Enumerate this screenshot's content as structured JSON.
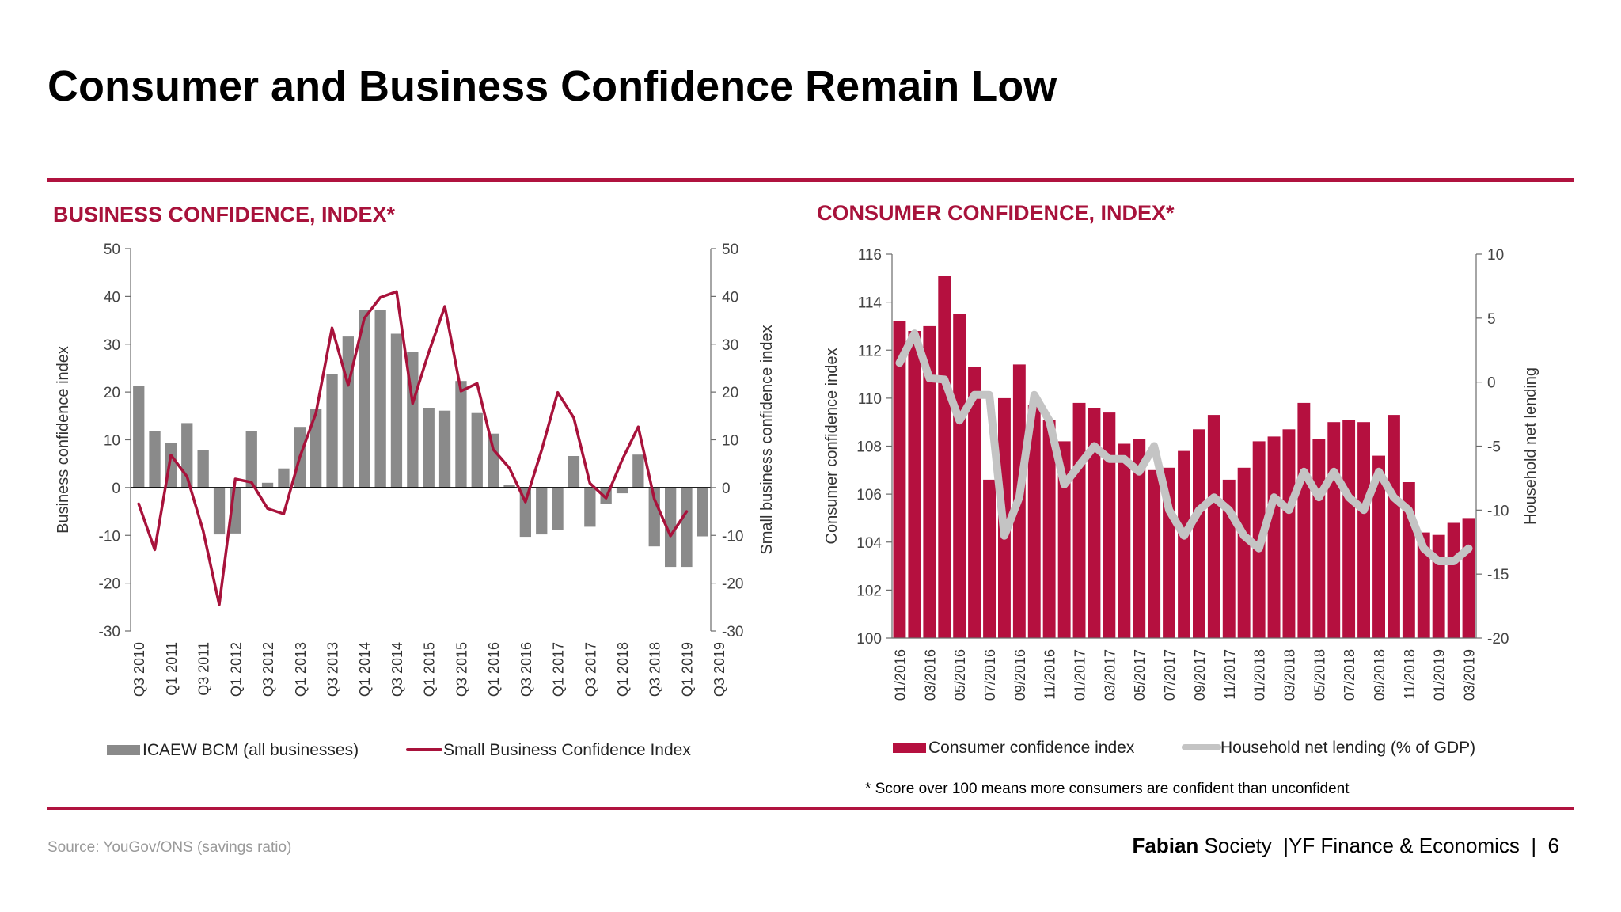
{
  "slide": {
    "title": "Consumer and Business Confidence Remain Low",
    "source": "Source: YouGov/ONS (savings ratio)",
    "footer_brand": "Fabian",
    "footer_rest": " Society  |YF Finance & Economics  |  6",
    "note": "* Score over 100 means more consumers are confident than unconfident"
  },
  "colors": {
    "accent": "#b0133f",
    "crimson": "#b5103f",
    "grey": "#8a8a8a",
    "lightgrey": "#c4c4c4"
  },
  "chart_data": [
    {
      "type": "bar",
      "title": "BUSINESS CONFIDENCE, INDEX*",
      "ylabel": "Business confidence index",
      "y2label": "Small business confidence index",
      "ylim": [
        -30,
        50
      ],
      "y2lim": [
        -30,
        50
      ],
      "yticks": [
        "50",
        "40",
        "30",
        "20",
        "10",
        "0",
        "-10",
        "-20",
        "-30"
      ],
      "y2ticks": [
        "50",
        "40",
        "30",
        "20",
        "10",
        "0",
        "-10",
        "-20",
        "-30"
      ],
      "x_tick_labels": [
        "Q3 2010",
        "Q1 2011",
        "Q3 2011",
        "Q1 2012",
        "Q3 2012",
        "Q1 2013",
        "Q3 2013",
        "Q1 2014",
        "Q3 2014",
        "Q1 2015",
        "Q3 2015",
        "Q1 2016",
        "Q3 2016",
        "Q1 2017",
        "Q3 2017",
        "Q1 2018",
        "Q3 2018",
        "Q1 2019",
        "Q3 2019"
      ],
      "legend_position": "bottom",
      "series": [
        {
          "name": "ICAEW BCM (all businesses)",
          "kind": "bar",
          "color": "#8a8a8a",
          "values": [
            21.2,
            11.8,
            9.3,
            13.5,
            7.9,
            -9.8,
            -9.6,
            11.9,
            1.0,
            4.0,
            12.7,
            16.5,
            23.8,
            31.6,
            37.1,
            37.2,
            32.2,
            28.4,
            16.7,
            16.1,
            22.3,
            15.6,
            11.3,
            0.6,
            -10.3,
            -9.8,
            -8.8,
            6.6,
            -8.2,
            -3.4,
            -1.2,
            6.9,
            -12.3,
            -16.6,
            -16.6,
            -10.2
          ]
        },
        {
          "name": "Small Business Confidence Index",
          "kind": "line",
          "color": "#a8123b",
          "values": [
            -3.4,
            -13.0,
            6.8,
            2.3,
            -9.0,
            -24.5,
            1.8,
            1.1,
            -4.4,
            -5.5,
            6.4,
            15.6,
            33.4,
            21.4,
            35.4,
            39.8,
            41.0,
            17.6,
            28.3,
            37.9,
            20.2,
            21.8,
            8.0,
            4.1,
            -3.0,
            7.8,
            19.9,
            14.6,
            0.9,
            -2.2,
            5.8,
            12.7,
            -2.4,
            -10.1,
            -5.0
          ]
        }
      ]
    },
    {
      "type": "bar",
      "title": "CONSUMER CONFIDENCE, INDEX*",
      "ylabel": "Consumer confidence index",
      "y2label": "Household net lending",
      "ylim": [
        100,
        116
      ],
      "y2lim": [
        -20,
        10
      ],
      "yticks": [
        "116",
        "114",
        "112",
        "110",
        "108",
        "106",
        "104",
        "102",
        "100"
      ],
      "y2ticks": [
        "10",
        "5",
        "0",
        "-5",
        "-10",
        "-15",
        "-20"
      ],
      "x_tick_labels": [
        "01/2016",
        "03/2016",
        "05/2016",
        "07/2016",
        "09/2016",
        "11/2016",
        "01/2017",
        "03/2017",
        "05/2017",
        "07/2017",
        "09/2017",
        "11/2017",
        "01/2018",
        "03/2018",
        "05/2018",
        "07/2018",
        "09/2018",
        "11/2018",
        "01/2019",
        "03/2019"
      ],
      "legend_position": "bottom",
      "series": [
        {
          "name": "Consumer confidence index",
          "kind": "bar",
          "color": "#b5103f",
          "values": [
            113.2,
            112.8,
            113.0,
            115.1,
            113.5,
            111.3,
            106.6,
            110.0,
            111.4,
            109.7,
            109.1,
            108.2,
            109.8,
            109.6,
            109.4,
            108.1,
            108.3,
            107.0,
            107.1,
            107.8,
            108.7,
            109.3,
            106.6,
            107.1,
            108.2,
            108.4,
            108.7,
            109.8,
            108.3,
            109.0,
            109.1,
            109.0,
            107.6,
            109.3,
            106.5,
            104.4,
            104.3,
            104.8,
            105.0
          ]
        },
        {
          "name": "Household net lending (% of GDP)",
          "kind": "line",
          "color": "#c4c4c4",
          "values": [
            1.5,
            3.8,
            0.3,
            0.2,
            -3.0,
            -1.0,
            -1.0,
            -12.0,
            -9.0,
            -1.0,
            -3.0,
            -8.0,
            -6.5,
            -5.0,
            -6.0,
            -6.0,
            -7.0,
            -5.0,
            -10.0,
            -12.0,
            -10.0,
            -9.0,
            -10.0,
            -12.0,
            -13.0,
            -9.0,
            -10.0,
            -7.0,
            -9.0,
            -7.0,
            -9.0,
            -10.0,
            -7.0,
            -9.0,
            -10.0,
            -13.0,
            -14.0,
            -14.0,
            -13.0
          ]
        }
      ]
    }
  ]
}
